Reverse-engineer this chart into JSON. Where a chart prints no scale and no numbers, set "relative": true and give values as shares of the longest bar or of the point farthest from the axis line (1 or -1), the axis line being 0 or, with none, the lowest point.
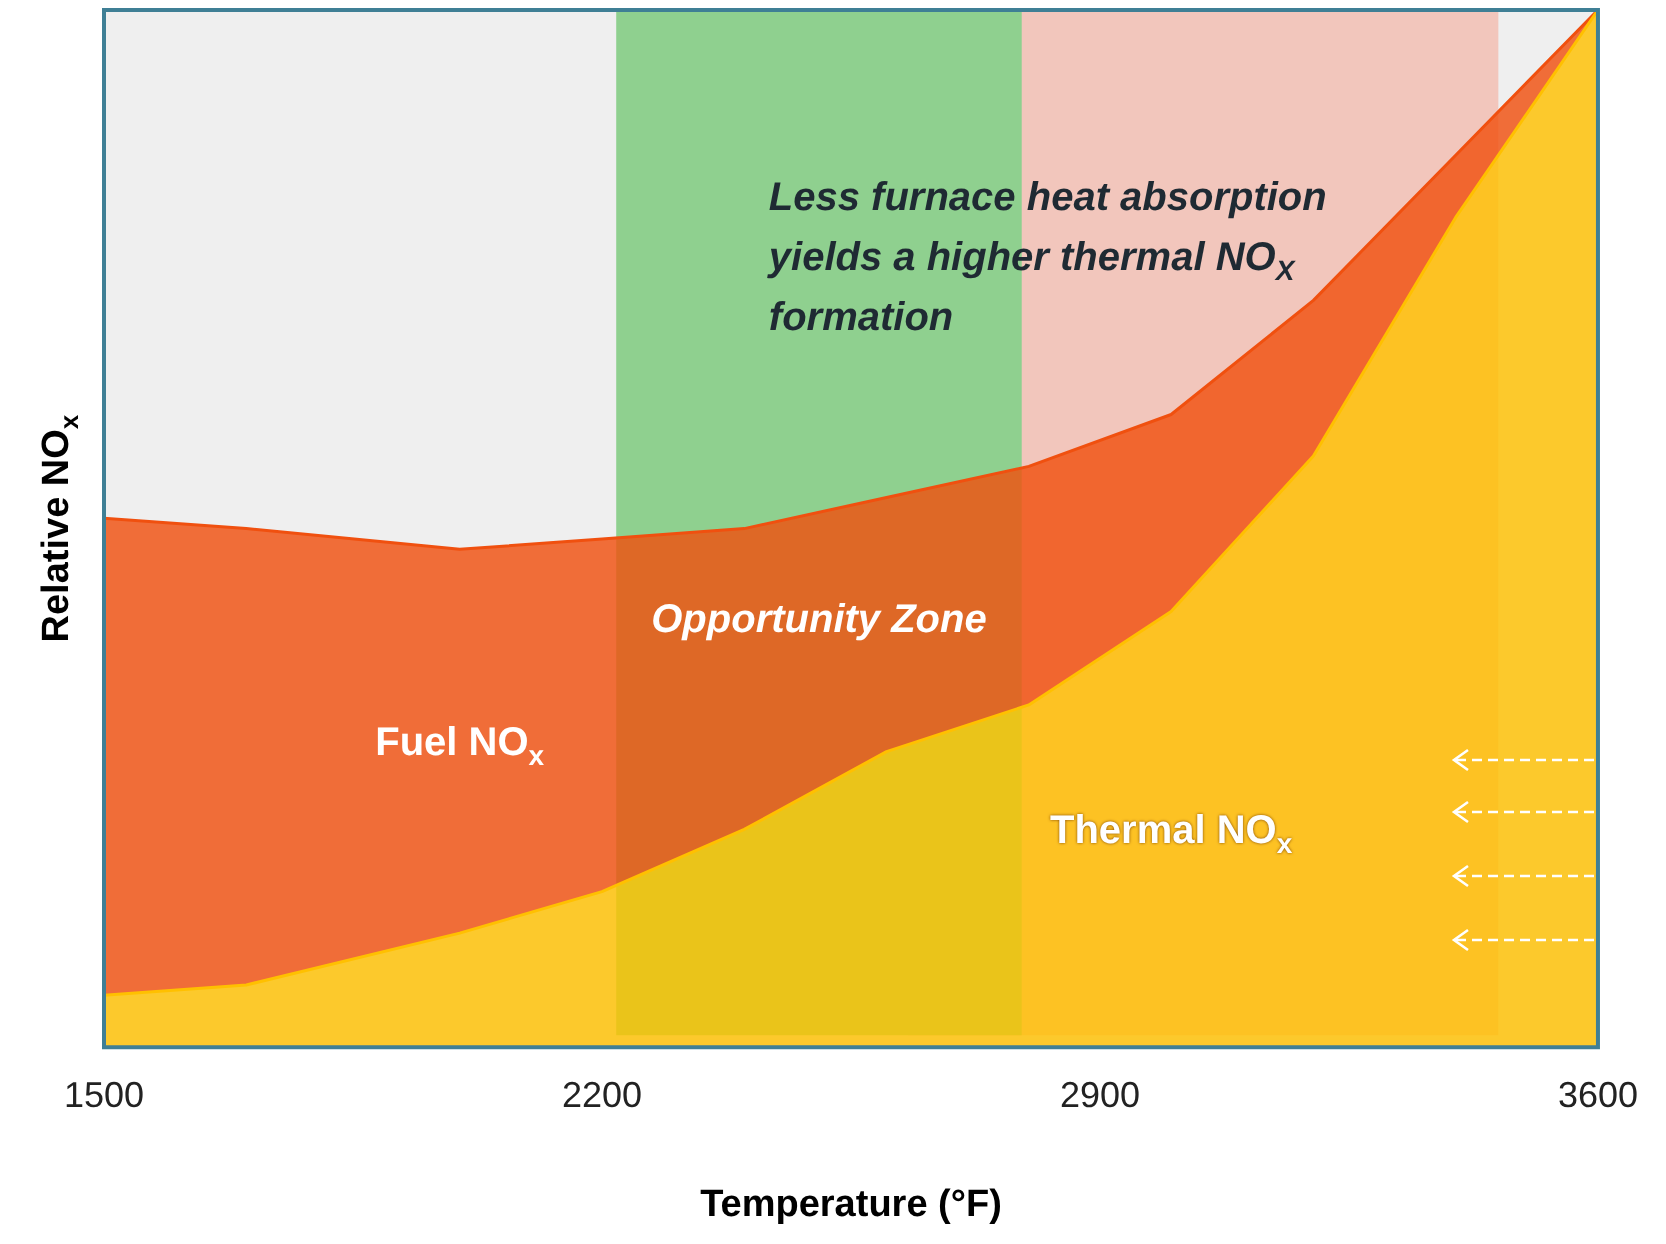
{
  "chart_data": {
    "type": "area",
    "stacked": true,
    "relative": true,
    "xlabel": "Temperature (°F)",
    "ylabel": "Relative NO$_{x}$",
    "x": [
      1500,
      1700,
      2000,
      2200,
      2400,
      2600,
      2800,
      3000,
      3200,
      3400,
      3600
    ],
    "xlim": [
      1500,
      3600
    ],
    "xticks": [
      1500,
      2200,
      2900,
      3600
    ],
    "grid": false,
    "legend": false,
    "series": [
      {
        "name": "Thermal NO$_{x}$",
        "color": "#ffc000",
        "values": [
          0.05,
          0.06,
          0.11,
          0.15,
          0.21,
          0.285,
          0.33,
          0.42,
          0.57,
          0.8,
          1.0
        ]
      },
      {
        "name": "Fuel NO$_{x}$",
        "color": "#f0500f",
        "values": [
          0.46,
          0.44,
          0.37,
          0.34,
          0.29,
          0.245,
          0.23,
          0.19,
          0.15,
          0.06,
          0.0
        ]
      }
    ],
    "bands": [
      {
        "axis": "x",
        "from": 2220,
        "to": 2790,
        "label": "Opportunity Zone",
        "color": "#8fd08f"
      },
      {
        "axis": "x",
        "from": 2630,
        "to": 3460,
        "color": "#f2c6bc"
      }
    ],
    "annotations": [
      "Less furnace heat absorption yields a higher thermal NO$_{X}$ formation"
    ]
  }
}
